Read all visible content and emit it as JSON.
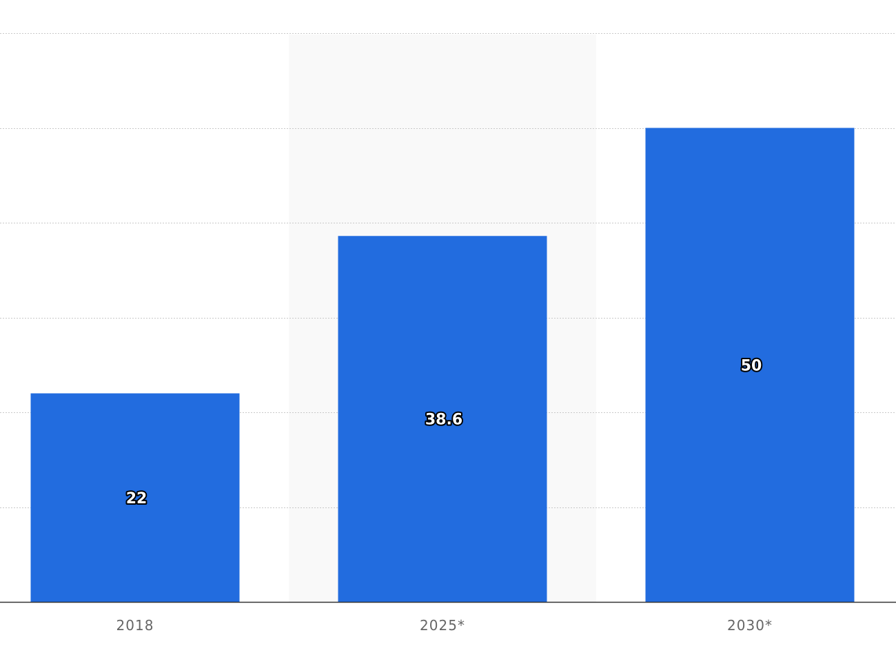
{
  "chart_data": {
    "type": "bar",
    "categories": [
      "2018",
      "2025*",
      "2030*"
    ],
    "values": [
      22,
      38.6,
      50
    ],
    "ylim": [
      0,
      60
    ],
    "y_grid_step": 10,
    "grid": true,
    "highlighted_category": "2025*",
    "colors": {
      "bar": "#226cdf",
      "highlight_band": "#f9f9f9",
      "grid": "#c8c8c8",
      "axis": "#333333",
      "tick_label": "#666666"
    }
  }
}
